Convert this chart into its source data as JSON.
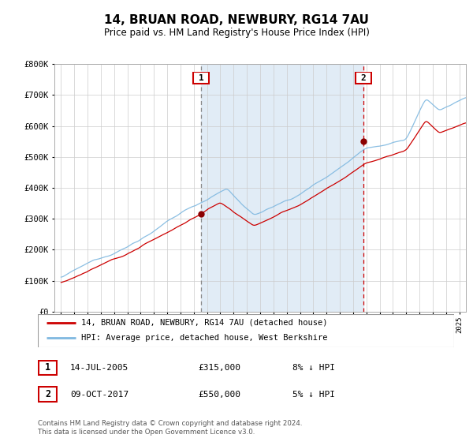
{
  "title": "14, BRUAN ROAD, NEWBURY, RG14 7AU",
  "subtitle": "Price paid vs. HM Land Registry's House Price Index (HPI)",
  "hpi_color": "#7fb8e0",
  "price_color": "#cc0000",
  "marker_color": "#8b0000",
  "bg_color": "#dce9f5",
  "sale1_date_num": 2005.54,
  "sale1_price": 315000,
  "sale1_label": "1",
  "sale2_date_num": 2017.77,
  "sale2_price": 550000,
  "sale2_label": "2",
  "ymin": 0,
  "ymax": 800000,
  "xmin": 1994.5,
  "xmax": 2025.5,
  "legend1": "14, BRUAN ROAD, NEWBURY, RG14 7AU (detached house)",
  "legend2": "HPI: Average price, detached house, West Berkshire",
  "table_row1_num": "1",
  "table_row1_date": "14-JUL-2005",
  "table_row1_price": "£315,000",
  "table_row1_hpi": "8% ↓ HPI",
  "table_row2_num": "2",
  "table_row2_date": "09-OCT-2017",
  "table_row2_price": "£550,000",
  "table_row2_hpi": "5% ↓ HPI",
  "footnote": "Contains HM Land Registry data © Crown copyright and database right 2024.\nThis data is licensed under the Open Government Licence v3.0."
}
